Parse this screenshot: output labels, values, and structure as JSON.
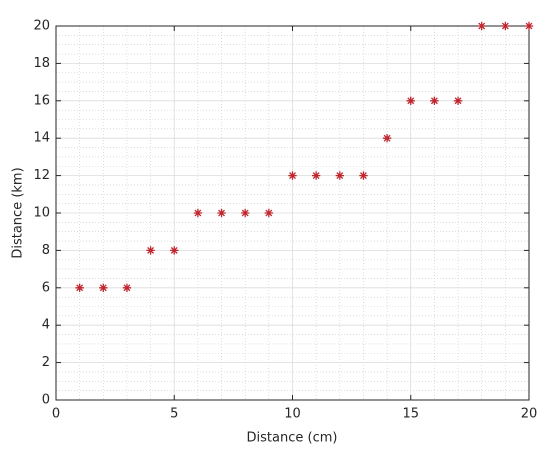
{
  "chart_data": {
    "type": "scatter",
    "xlabel": "Distance (cm)",
    "ylabel": "Distance (km)",
    "series": [
      {
        "name": "data",
        "color": "#c0262d",
        "x": [
          1,
          2,
          3,
          4,
          5,
          6,
          7,
          8,
          9,
          10,
          11,
          12,
          13,
          14,
          15,
          16,
          17,
          18,
          19,
          20
        ],
        "values": [
          6,
          6,
          6,
          8,
          8,
          10,
          10,
          10,
          10,
          12,
          12,
          12,
          12,
          14,
          16,
          16,
          16,
          20,
          20,
          20
        ]
      }
    ],
    "xlim": [
      0,
      20
    ],
    "xticks": [
      0,
      5,
      10,
      15,
      20
    ],
    "ylim": [
      0,
      20
    ],
    "yticks": [
      0,
      2,
      4,
      6,
      8,
      10,
      12,
      14,
      16,
      18,
      20
    ],
    "grid": true,
    "minor_grid": true,
    "legend": false
  }
}
